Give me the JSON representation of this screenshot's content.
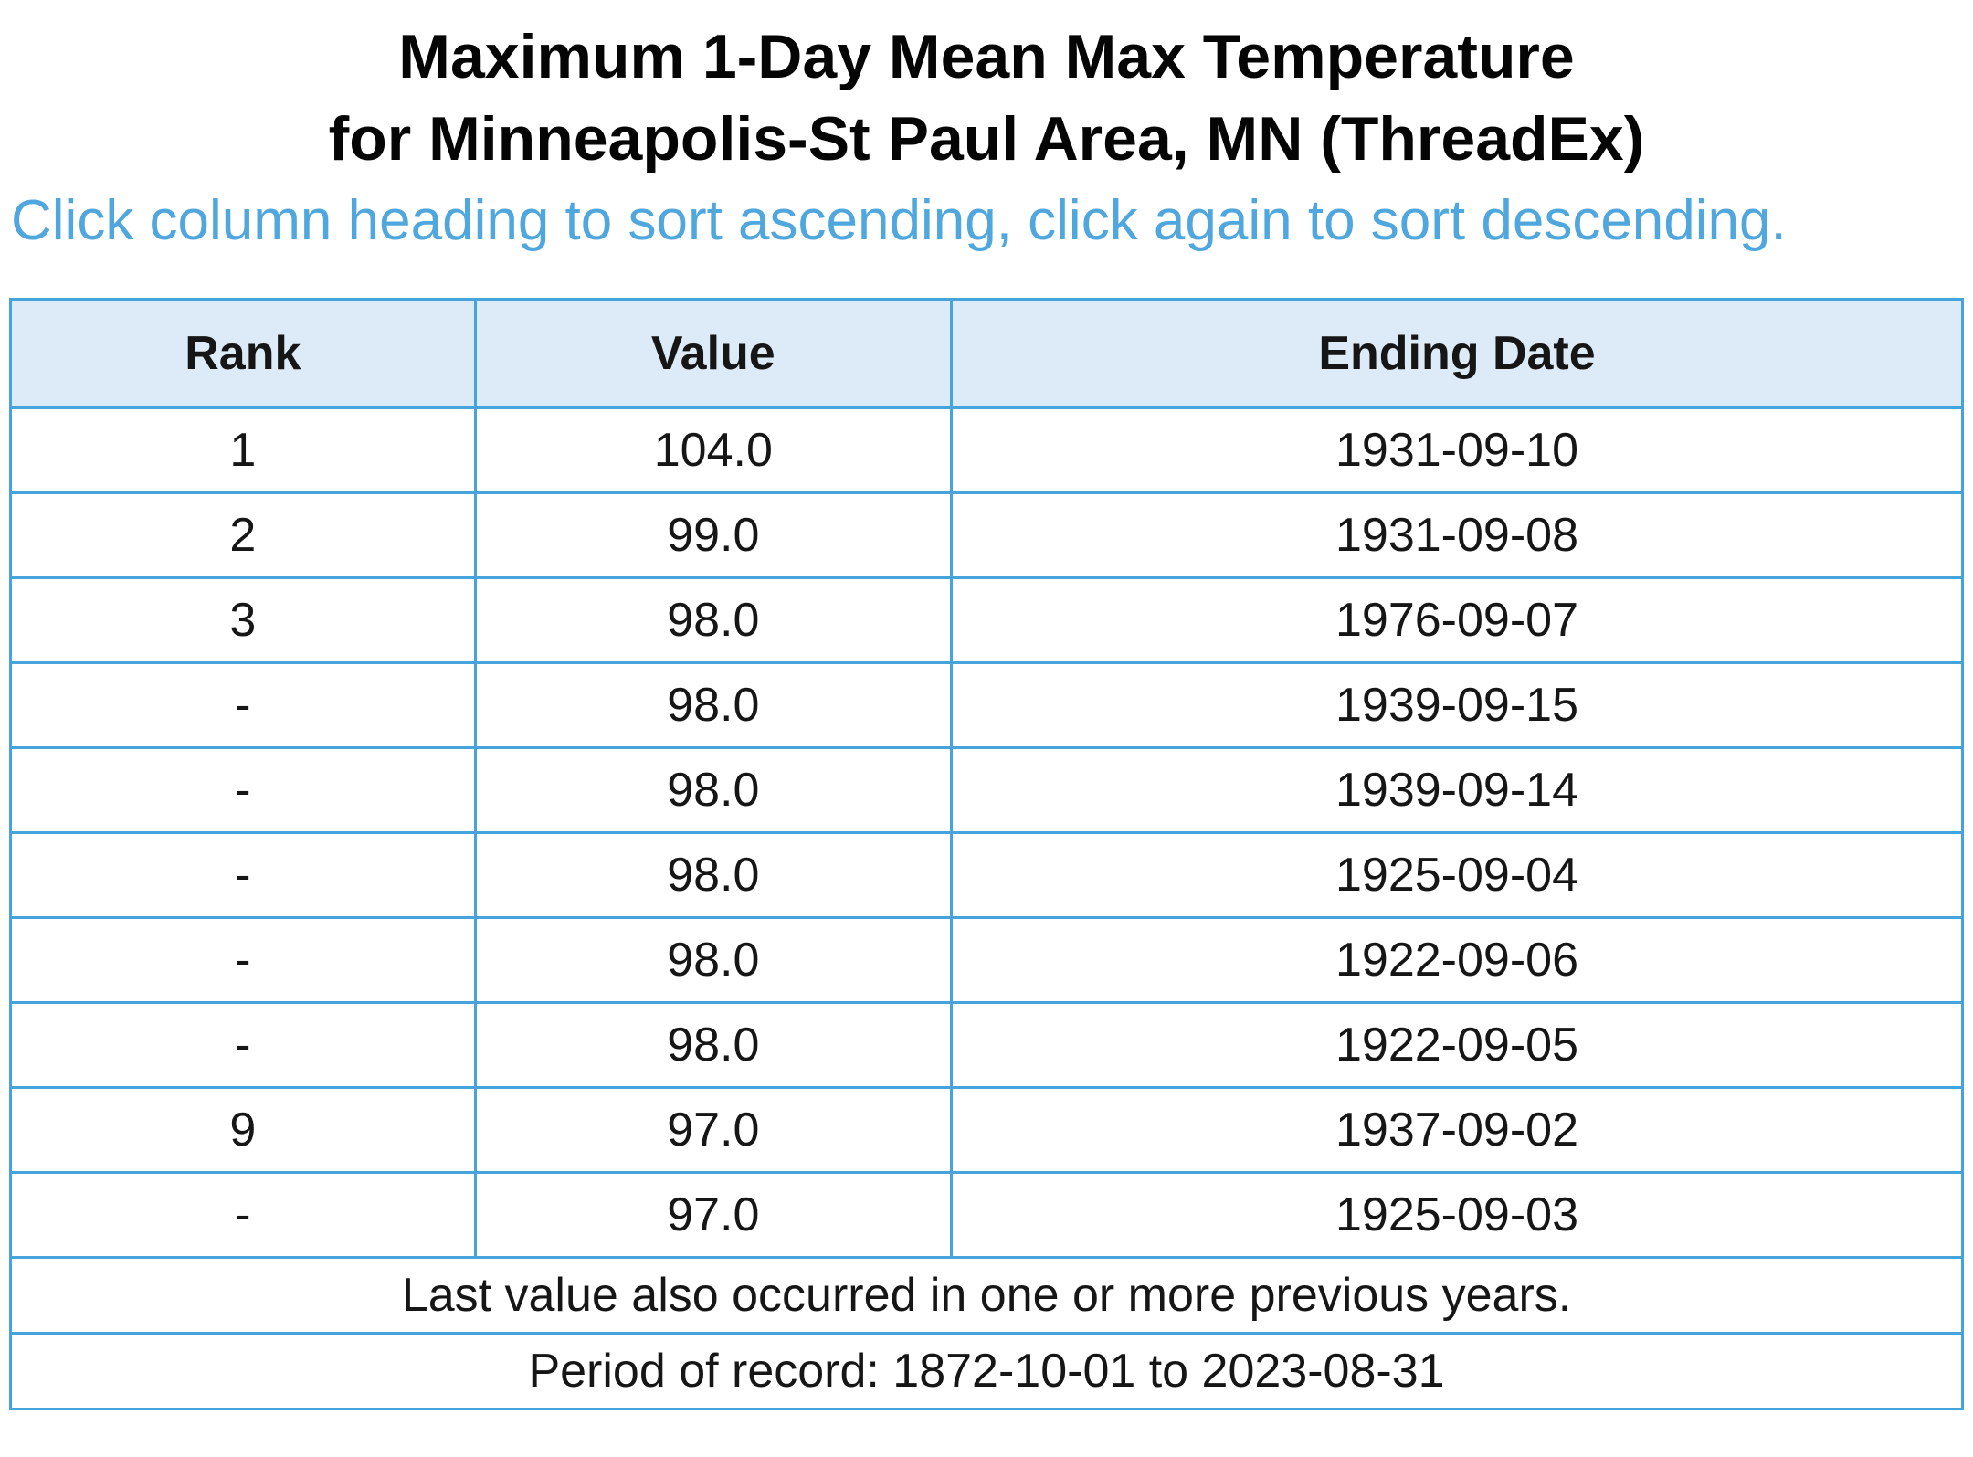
{
  "header": {
    "title_line1": "Maximum 1-Day Mean Max Temperature",
    "title_line2": "for Minneapolis-St Paul Area, MN (ThreadEx)",
    "sort_instructions": "Click column heading to sort ascending, click again to sort descending."
  },
  "colors": {
    "border_blue": "#47a3db",
    "header_row_bg": "#dcebf7",
    "instructions_text_blue": "#4fa7dd",
    "body_text": "#161616"
  },
  "table": {
    "columns": [
      "Rank",
      "Value",
      "Ending Date"
    ],
    "rows": [
      {
        "rank": "1",
        "value": "104.0",
        "ending_date": "1931-09-10"
      },
      {
        "rank": "2",
        "value": "99.0",
        "ending_date": "1931-09-08"
      },
      {
        "rank": "3",
        "value": "98.0",
        "ending_date": "1976-09-07"
      },
      {
        "rank": "-",
        "value": "98.0",
        "ending_date": "1939-09-15"
      },
      {
        "rank": "-",
        "value": "98.0",
        "ending_date": "1939-09-14"
      },
      {
        "rank": "-",
        "value": "98.0",
        "ending_date": "1925-09-04"
      },
      {
        "rank": "-",
        "value": "98.0",
        "ending_date": "1922-09-06"
      },
      {
        "rank": "-",
        "value": "98.0",
        "ending_date": "1922-09-05"
      },
      {
        "rank": "9",
        "value": "97.0",
        "ending_date": "1937-09-02"
      },
      {
        "rank": "-",
        "value": "97.0",
        "ending_date": "1925-09-03"
      }
    ],
    "footnote": "Last value also occurred in one or more previous years.",
    "period_of_record": "Period of record: 1872-10-01 to 2023-08-31"
  }
}
